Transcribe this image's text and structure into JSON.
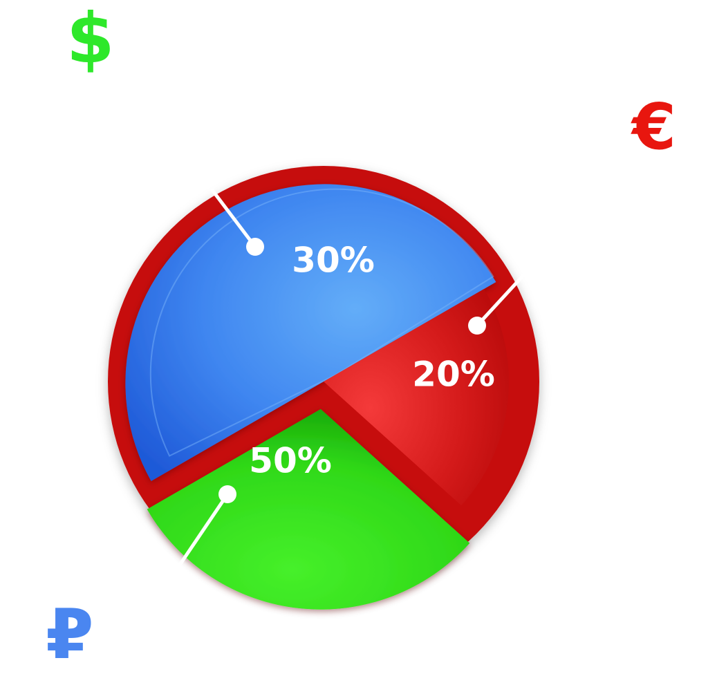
{
  "chart_data": {
    "type": "pie",
    "slices": [
      {
        "label": "50%",
        "value": 50,
        "color": "#3f86f0",
        "symbol": "₽",
        "symbol_color": "#4a86f0"
      },
      {
        "label": "20%",
        "value": 20,
        "color": "#d41a1a",
        "symbol": "€",
        "symbol_color": "#e8160f"
      },
      {
        "label": "30%",
        "value": 30,
        "color": "#2fd818",
        "symbol": "$",
        "symbol_color": "#2ee82a"
      }
    ]
  },
  "icons": {
    "dollar": "dollar-sign-icon",
    "euro": "euro-sign-icon",
    "ruble": "ruble-sign-icon"
  },
  "colors": {
    "background": "#ffffff",
    "red_rim": "#c60f0f",
    "callout_line": "#ffffff"
  }
}
